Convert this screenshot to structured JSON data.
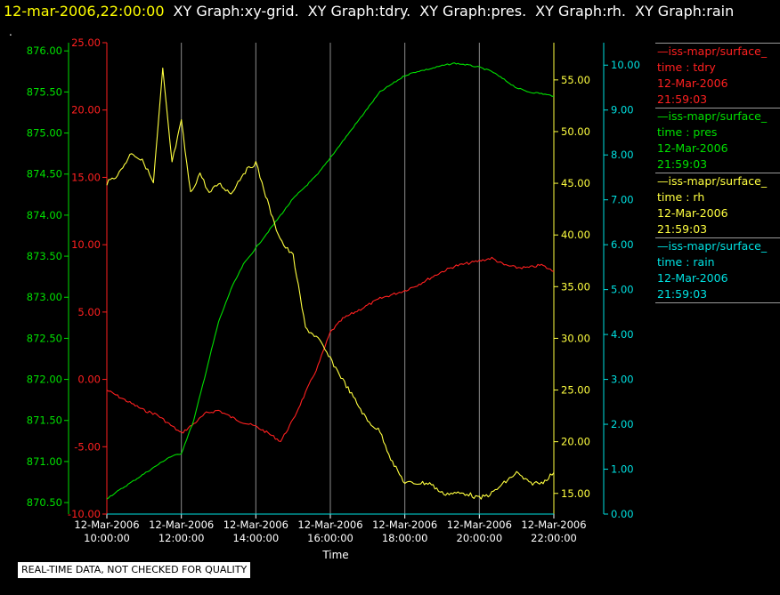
{
  "header": {
    "timestamp": "12-mar-2006,22:00:00",
    "graphs": [
      "XY Graph:xy-grid.",
      "XY Graph:tdry.",
      "XY Graph:pres.",
      "XY Graph:rh.",
      "XY Graph:rain"
    ]
  },
  "corner_mark": ".",
  "footer_note": "REAL-TIME DATA, NOT CHECKED FOR QUALITY",
  "legend": [
    {
      "source": "iss-mapr/surface_",
      "var": "time : tdry",
      "date": "12-Mar-2006",
      "time": "21:59:03",
      "color": "#ff2020"
    },
    {
      "source": "iss-mapr/surface_",
      "var": "time : pres",
      "date": "12-Mar-2006",
      "time": "21:59:03",
      "color": "#00e000"
    },
    {
      "source": "iss-mapr/surface_",
      "var": "time : rh",
      "date": "12-Mar-2006",
      "time": "21:59:03",
      "color": "#ffff40"
    },
    {
      "source": "iss-mapr/surface_",
      "var": "time : rain",
      "date": "12-Mar-2006",
      "time": "21:59:03",
      "color": "#00e0e0"
    }
  ],
  "chart_data": {
    "type": "line",
    "xlabel": "Time",
    "x_ticks": [
      {
        "date": "12-Mar-2006",
        "time": "10:00:00"
      },
      {
        "date": "12-Mar-2006",
        "time": "12:00:00"
      },
      {
        "date": "12-Mar-2006",
        "time": "14:00:00"
      },
      {
        "date": "12-Mar-2006",
        "time": "16:00:00"
      },
      {
        "date": "12-Mar-2006",
        "time": "18:00:00"
      },
      {
        "date": "12-Mar-2006",
        "time": "20:00:00"
      },
      {
        "date": "12-Mar-2006",
        "time": "22:00:00"
      }
    ],
    "xlim": [
      "10:00:00",
      "22:00:00"
    ],
    "grid": "vertical",
    "axes": {
      "pres": {
        "side": "left",
        "color": "#00e000",
        "range": [
          870.36,
          876.1
        ],
        "ticks": [
          "870.50",
          "871.00",
          "871.50",
          "872.00",
          "872.50",
          "873.00",
          "873.50",
          "874.00",
          "874.50",
          "875.00",
          "875.50",
          "876.00"
        ]
      },
      "tdry": {
        "side": "left",
        "color": "#ff2020",
        "range": [
          -10,
          25
        ],
        "ticks": [
          "-10.00",
          "-5.00",
          "0.00",
          "5.00",
          "10.00",
          "15.00",
          "20.00",
          "25.00"
        ]
      },
      "rh": {
        "side": "right",
        "color": "#ffff40",
        "range": [
          13.0,
          58.6
        ],
        "ticks": [
          "15.00",
          "20.00",
          "25.00",
          "30.00",
          "35.00",
          "40.00",
          "45.00",
          "50.00",
          "55.00"
        ]
      },
      "rain": {
        "side": "right",
        "color": "#00e0e0",
        "range": [
          0,
          10.5
        ],
        "ticks": [
          "0.00",
          "1.00",
          "2.00",
          "3.00",
          "4.00",
          "5.00",
          "6.00",
          "7.00",
          "8.00",
          "9.00",
          "10.00"
        ]
      }
    },
    "series": [
      {
        "name": "tdry",
        "axis": "tdry",
        "color": "#ff2020",
        "x": [
          "10:00",
          "10:20",
          "10:40",
          "11:00",
          "11:20",
          "11:40",
          "12:00",
          "12:20",
          "12:40",
          "13:00",
          "13:20",
          "13:40",
          "14:00",
          "14:20",
          "14:40",
          "15:00",
          "15:20",
          "15:40",
          "16:00",
          "16:20",
          "16:40",
          "17:00",
          "17:20",
          "17:40",
          "18:00",
          "18:20",
          "18:40",
          "19:00",
          "19:20",
          "19:40",
          "20:00",
          "20:20",
          "20:40",
          "21:00",
          "21:20",
          "21:40",
          "22:00"
        ],
        "y": [
          -0.8,
          -1.3,
          -1.8,
          -2.3,
          -2.6,
          -3.3,
          -4.0,
          -3.3,
          -2.5,
          -2.3,
          -2.8,
          -3.2,
          -3.5,
          -4.0,
          -4.6,
          -3.0,
          -1.0,
          1.0,
          3.5,
          4.5,
          5.0,
          5.5,
          6.0,
          6.3,
          6.6,
          7.0,
          7.5,
          8.0,
          8.4,
          8.6,
          8.8,
          9.0,
          8.5,
          8.3,
          8.3,
          8.5,
          8.0
        ]
      },
      {
        "name": "pres",
        "axis": "pres",
        "color": "#00e000",
        "x": [
          "10:00",
          "10:20",
          "10:40",
          "11:00",
          "11:20",
          "11:40",
          "12:00",
          "12:20",
          "12:40",
          "13:00",
          "13:20",
          "13:40",
          "14:00",
          "14:20",
          "14:40",
          "15:00",
          "15:20",
          "15:40",
          "16:00",
          "16:20",
          "16:40",
          "17:00",
          "17:20",
          "17:40",
          "18:00",
          "18:20",
          "18:40",
          "19:00",
          "19:20",
          "19:40",
          "20:00",
          "20:20",
          "20:40",
          "21:00",
          "21:20",
          "21:40",
          "22:00"
        ],
        "y": [
          870.55,
          870.65,
          870.75,
          870.85,
          870.95,
          871.05,
          871.1,
          871.5,
          872.1,
          872.7,
          873.1,
          873.4,
          873.6,
          873.8,
          874.0,
          874.2,
          874.35,
          874.5,
          874.7,
          874.9,
          875.1,
          875.3,
          875.5,
          875.6,
          875.7,
          875.75,
          875.78,
          875.82,
          875.85,
          875.83,
          875.8,
          875.75,
          875.65,
          875.55,
          875.5,
          875.48,
          875.45
        ]
      },
      {
        "name": "rh",
        "axis": "rh",
        "color": "#ffff40",
        "x": [
          "10:00",
          "10:20",
          "10:40",
          "11:00",
          "11:15",
          "11:30",
          "11:45",
          "12:00",
          "12:15",
          "12:30",
          "12:45",
          "13:00",
          "13:20",
          "13:40",
          "14:00",
          "14:10",
          "14:30",
          "14:45",
          "15:00",
          "15:20",
          "15:40",
          "16:00",
          "16:20",
          "16:40",
          "17:00",
          "17:20",
          "17:40",
          "18:00",
          "18:20",
          "18:40",
          "19:00",
          "19:20",
          "19:40",
          "20:00",
          "20:20",
          "20:40",
          "21:00",
          "21:20",
          "21:40",
          "22:00"
        ],
        "y": [
          45,
          46,
          48,
          47,
          45,
          56,
          47,
          51,
          44,
          46,
          44,
          45,
          44,
          46,
          47,
          45,
          41,
          39,
          38,
          31,
          30,
          28,
          26,
          24,
          22,
          21,
          18,
          16,
          16,
          16,
          15,
          15,
          15,
          14.5,
          15,
          16,
          17,
          16,
          16,
          17
        ]
      },
      {
        "name": "rain",
        "axis": "rain",
        "color": "#00e0e0",
        "x": [
          "10:00",
          "22:00"
        ],
        "y": [
          0,
          0
        ]
      }
    ]
  }
}
